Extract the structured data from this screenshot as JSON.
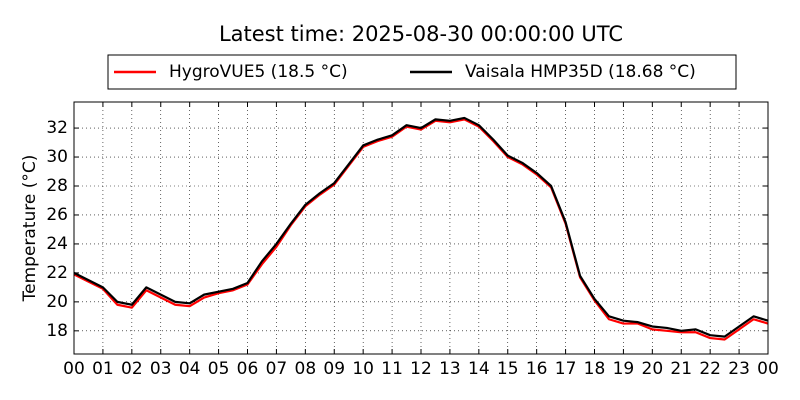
{
  "chart_data": {
    "type": "line",
    "title": "Latest time: 2025-08-30 00:00:00 UTC",
    "y_label": "Temperature (°C)",
    "x": [
      0,
      0.5,
      1,
      1.5,
      2,
      2.5,
      3,
      3.5,
      4,
      4.5,
      5,
      5.5,
      6,
      6.5,
      7,
      7.5,
      8,
      8.5,
      9,
      9.5,
      10,
      10.5,
      11,
      11.5,
      12,
      12.5,
      13,
      13.5,
      14,
      14.5,
      15,
      15.5,
      16,
      16.5,
      17,
      17.5,
      18,
      18.5,
      19,
      19.5,
      20,
      20.5,
      21,
      21.5,
      22,
      22.5,
      23,
      23.5,
      24
    ],
    "series": [
      {
        "name": "HygroVUE5 (18.5 °C)",
        "color": "#ff0000",
        "values": [
          21.9,
          21.4,
          20.9,
          19.8,
          19.6,
          20.8,
          20.3,
          19.8,
          19.7,
          20.3,
          20.6,
          20.8,
          21.2,
          22.6,
          23.8,
          25.3,
          26.6,
          27.4,
          28.1,
          29.4,
          30.7,
          31.1,
          31.4,
          32.1,
          31.9,
          32.5,
          32.4,
          32.6,
          32.1,
          31.1,
          30.0,
          29.5,
          28.8,
          27.9,
          25.4,
          21.7,
          20.1,
          18.8,
          18.5,
          18.5,
          18.1,
          18.0,
          17.9,
          17.9,
          17.5,
          17.4,
          18.1,
          18.8,
          18.5
        ]
      },
      {
        "name": "Vaisala HMP35D (18.68 °C)",
        "color": "#000000",
        "values": [
          22.0,
          21.5,
          21.0,
          20.0,
          19.8,
          21.0,
          20.5,
          20.0,
          19.9,
          20.5,
          20.7,
          20.9,
          21.3,
          22.8,
          24.0,
          25.4,
          26.7,
          27.5,
          28.2,
          29.5,
          30.8,
          31.2,
          31.5,
          32.2,
          32.0,
          32.6,
          32.5,
          32.7,
          32.2,
          31.2,
          30.1,
          29.6,
          28.9,
          28.0,
          25.5,
          21.8,
          20.2,
          19.0,
          18.7,
          18.6,
          18.3,
          18.2,
          18.0,
          18.1,
          17.7,
          17.6,
          18.3,
          19.0,
          18.7
        ]
      }
    ],
    "xlim": [
      0,
      24
    ],
    "xticks": [
      {
        "value": 0,
        "label": "00"
      },
      {
        "value": 1,
        "label": "01"
      },
      {
        "value": 2,
        "label": "02"
      },
      {
        "value": 3,
        "label": "03"
      },
      {
        "value": 4,
        "label": "04"
      },
      {
        "value": 5,
        "label": "05"
      },
      {
        "value": 6,
        "label": "06"
      },
      {
        "value": 7,
        "label": "07"
      },
      {
        "value": 8,
        "label": "08"
      },
      {
        "value": 9,
        "label": "09"
      },
      10,
      11,
      12,
      13,
      14,
      15,
      16,
      17,
      18,
      19,
      20,
      21,
      22,
      23,
      {
        "value": 24,
        "label": "00"
      }
    ],
    "ylim": [
      16.4,
      33.8
    ],
    "yticks": [
      18,
      20,
      22,
      24,
      26,
      28,
      30,
      32
    ],
    "grid": true,
    "legend": "top"
  }
}
